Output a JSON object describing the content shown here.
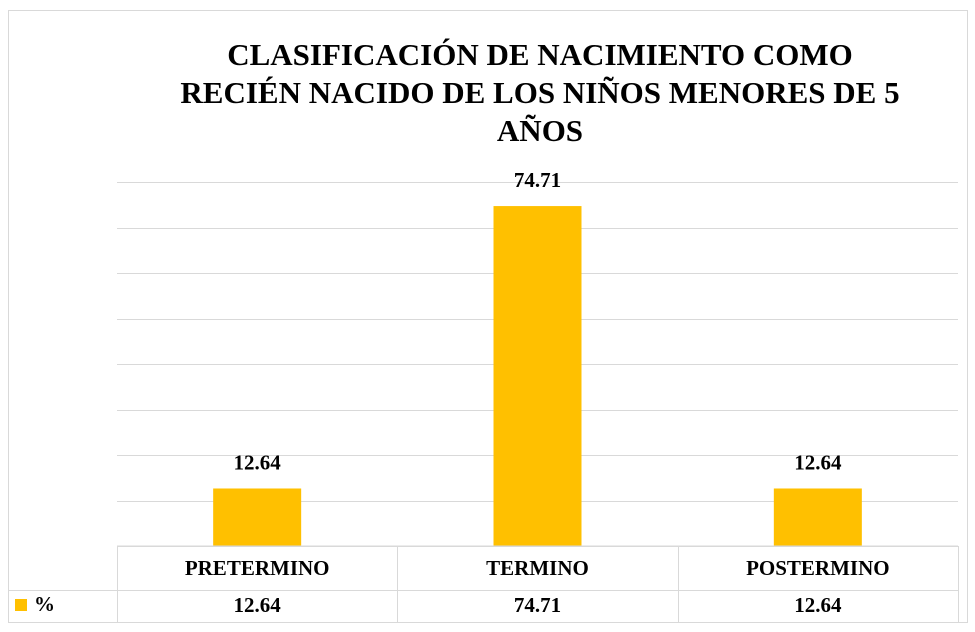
{
  "chart_data": {
    "type": "bar",
    "title": "CLASIFICACIÓN DE NACIMIENTO COMO RECIÉN NACIDO DE LOS NIÑOS MENORES DE 5 AÑOS",
    "categories": [
      "PRETERMINO",
      "TERMINO",
      "POSTERMINO"
    ],
    "series": [
      {
        "name": "%",
        "color": "#ffc000",
        "values": [
          12.64,
          74.71,
          12.64
        ]
      }
    ],
    "ylim": [
      0,
      80
    ],
    "yticks": [
      0,
      10,
      20,
      30,
      40,
      50,
      60,
      70,
      80
    ],
    "grid": true,
    "data_table": true
  }
}
